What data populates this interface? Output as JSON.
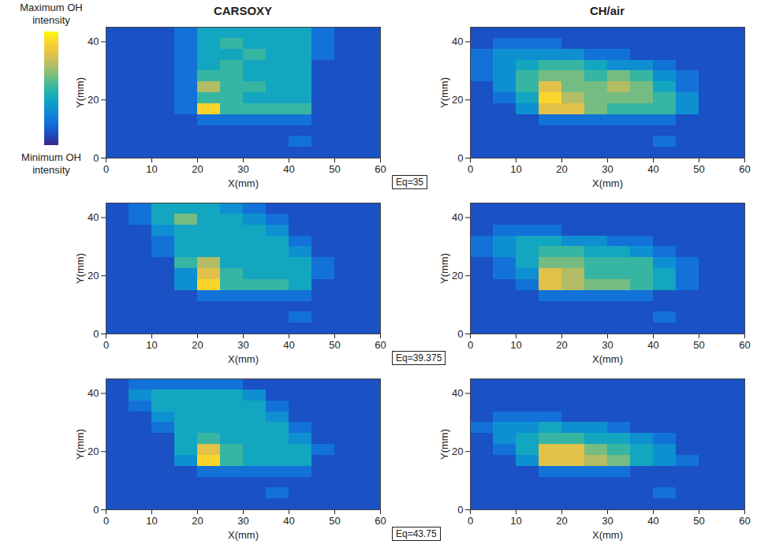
{
  "chart_data": {
    "type": "heatmap",
    "column_titles": [
      "CARSOXY",
      "CH/air"
    ],
    "row_labels": [
      "Eq=35",
      "Eq=39.375",
      "Eq=43.75"
    ],
    "x_label": "X(mm)",
    "y_label": "Y(mm)",
    "xlim": [
      0,
      60
    ],
    "ylim": [
      0,
      45
    ],
    "xticks": [
      0,
      10,
      20,
      30,
      40,
      50,
      60
    ],
    "yticks": [
      0,
      20,
      40
    ],
    "x_bins": [
      0,
      5,
      10,
      15,
      20,
      25,
      30,
      35,
      40,
      45,
      50,
      55,
      60
    ],
    "y_bins": [
      45,
      41.25,
      37.5,
      33.75,
      30,
      26.25,
      22.5,
      18.75,
      15,
      11.25,
      7.5,
      3.75,
      0
    ],
    "colorbar": {
      "max_label": "Maximum OH intensity",
      "min_label": "Minimum OH intensity",
      "range": [
        0,
        10
      ]
    },
    "panels": [
      [
        [
          [
            1,
            1,
            1,
            2,
            4,
            4,
            4,
            4,
            4,
            2,
            1,
            1
          ],
          [
            1,
            1,
            1,
            2,
            4,
            5,
            4,
            4,
            4,
            2,
            1,
            1
          ],
          [
            1,
            1,
            1,
            2,
            4,
            4,
            5,
            4,
            4,
            2,
            1,
            1
          ],
          [
            1,
            1,
            1,
            2,
            4,
            5,
            4,
            4,
            4,
            1,
            1,
            1
          ],
          [
            1,
            1,
            1,
            2,
            5,
            5,
            4,
            4,
            4,
            1,
            1,
            1
          ],
          [
            1,
            1,
            1,
            2,
            7,
            5,
            5,
            4,
            4,
            1,
            1,
            1
          ],
          [
            1,
            1,
            1,
            2,
            5,
            5,
            4,
            4,
            4,
            1,
            1,
            1
          ],
          [
            1,
            1,
            1,
            2,
            9,
            5,
            5,
            5,
            5,
            1,
            1,
            1
          ],
          [
            1,
            1,
            1,
            1,
            2,
            2,
            2,
            2,
            2,
            1,
            1,
            1
          ],
          [
            1,
            1,
            1,
            1,
            1,
            1,
            1,
            1,
            1,
            1,
            1,
            1
          ],
          [
            1,
            1,
            1,
            1,
            1,
            1,
            1,
            1,
            2,
            1,
            1,
            1
          ],
          [
            1,
            1,
            1,
            1,
            1,
            1,
            1,
            1,
            1,
            1,
            1,
            1
          ]
        ],
        [
          [
            1,
            1,
            1,
            1,
            1,
            1,
            1,
            1,
            1,
            1,
            1,
            1
          ],
          [
            1,
            2,
            2,
            2,
            1,
            1,
            1,
            1,
            1,
            1,
            1,
            1
          ],
          [
            2,
            3,
            3,
            3,
            3,
            2,
            2,
            1,
            1,
            1,
            1,
            1
          ],
          [
            2,
            3,
            4,
            5,
            5,
            4,
            3,
            3,
            2,
            1,
            1,
            1
          ],
          [
            2,
            3,
            5,
            6,
            6,
            5,
            6,
            5,
            3,
            2,
            1,
            1
          ],
          [
            1,
            3,
            5,
            8,
            6,
            6,
            7,
            6,
            4,
            2,
            1,
            1
          ],
          [
            1,
            2,
            4,
            9,
            7,
            6,
            6,
            6,
            5,
            3,
            1,
            1
          ],
          [
            1,
            1,
            3,
            8,
            8,
            6,
            5,
            5,
            5,
            3,
            1,
            1
          ],
          [
            1,
            1,
            1,
            2,
            2,
            2,
            2,
            2,
            2,
            1,
            1,
            1
          ],
          [
            1,
            1,
            1,
            1,
            1,
            1,
            1,
            1,
            1,
            1,
            1,
            1
          ],
          [
            1,
            1,
            1,
            1,
            1,
            1,
            1,
            1,
            2,
            1,
            1,
            1
          ],
          [
            1,
            1,
            1,
            1,
            1,
            1,
            1,
            1,
            1,
            1,
            1,
            1
          ]
        ]
      ],
      [
        [
          [
            1,
            2,
            4,
            4,
            4,
            3,
            2,
            1,
            1,
            1,
            1,
            1
          ],
          [
            1,
            2,
            4,
            6,
            4,
            4,
            3,
            2,
            1,
            1,
            1,
            1
          ],
          [
            1,
            1,
            3,
            4,
            4,
            4,
            4,
            3,
            1,
            1,
            1,
            1
          ],
          [
            1,
            1,
            2,
            4,
            4,
            4,
            4,
            4,
            2,
            1,
            1,
            1
          ],
          [
            1,
            1,
            2,
            4,
            4,
            4,
            4,
            4,
            3,
            1,
            1,
            1
          ],
          [
            1,
            1,
            1,
            5,
            7,
            4,
            4,
            4,
            4,
            2,
            1,
            1
          ],
          [
            1,
            1,
            1,
            3,
            8,
            5,
            4,
            4,
            4,
            2,
            1,
            1
          ],
          [
            1,
            1,
            1,
            3,
            9,
            5,
            5,
            5,
            4,
            1,
            1,
            1
          ],
          [
            1,
            1,
            1,
            1,
            2,
            2,
            2,
            2,
            2,
            1,
            1,
            1
          ],
          [
            1,
            1,
            1,
            1,
            1,
            1,
            1,
            1,
            1,
            1,
            1,
            1
          ],
          [
            1,
            1,
            1,
            1,
            1,
            1,
            1,
            1,
            2,
            1,
            1,
            1
          ],
          [
            1,
            1,
            1,
            1,
            1,
            1,
            1,
            1,
            1,
            1,
            1,
            1
          ]
        ],
        [
          [
            1,
            1,
            1,
            1,
            1,
            1,
            1,
            1,
            1,
            1,
            1,
            1
          ],
          [
            1,
            1,
            1,
            1,
            1,
            1,
            1,
            1,
            1,
            1,
            1,
            1
          ],
          [
            1,
            2,
            2,
            2,
            1,
            1,
            1,
            1,
            1,
            1,
            1,
            1
          ],
          [
            2,
            3,
            4,
            4,
            3,
            3,
            2,
            2,
            1,
            1,
            1,
            1
          ],
          [
            2,
            3,
            4,
            5,
            5,
            4,
            4,
            3,
            2,
            1,
            1,
            1
          ],
          [
            1,
            2,
            4,
            6,
            6,
            5,
            5,
            5,
            3,
            2,
            1,
            1
          ],
          [
            1,
            2,
            3,
            8,
            7,
            5,
            5,
            5,
            4,
            2,
            1,
            1
          ],
          [
            1,
            1,
            2,
            8,
            7,
            6,
            6,
            5,
            4,
            2,
            1,
            1
          ],
          [
            1,
            1,
            1,
            2,
            2,
            2,
            2,
            2,
            1,
            1,
            1,
            1
          ],
          [
            1,
            1,
            1,
            1,
            1,
            1,
            1,
            1,
            1,
            1,
            1,
            1
          ],
          [
            1,
            1,
            1,
            1,
            1,
            1,
            1,
            1,
            2,
            1,
            1,
            1
          ],
          [
            1,
            1,
            1,
            1,
            1,
            1,
            1,
            1,
            1,
            1,
            1,
            1
          ]
        ]
      ],
      [
        [
          [
            1,
            2,
            2,
            2,
            2,
            2,
            1,
            1,
            1,
            1,
            1,
            1
          ],
          [
            1,
            3,
            4,
            4,
            4,
            4,
            3,
            1,
            1,
            1,
            1,
            1
          ],
          [
            1,
            2,
            4,
            4,
            4,
            4,
            4,
            2,
            1,
            1,
            1,
            1
          ],
          [
            1,
            1,
            3,
            4,
            4,
            4,
            4,
            3,
            1,
            1,
            1,
            1
          ],
          [
            1,
            1,
            2,
            4,
            4,
            4,
            4,
            4,
            2,
            1,
            1,
            1
          ],
          [
            1,
            1,
            1,
            4,
            5,
            4,
            4,
            4,
            3,
            1,
            1,
            1
          ],
          [
            1,
            1,
            1,
            4,
            8,
            5,
            4,
            4,
            4,
            2,
            1,
            1
          ],
          [
            1,
            1,
            1,
            3,
            9,
            5,
            4,
            4,
            4,
            1,
            1,
            1
          ],
          [
            1,
            1,
            1,
            1,
            2,
            2,
            2,
            2,
            2,
            1,
            1,
            1
          ],
          [
            1,
            1,
            1,
            1,
            1,
            1,
            1,
            1,
            1,
            1,
            1,
            1
          ],
          [
            1,
            1,
            1,
            1,
            1,
            1,
            1,
            2,
            1,
            1,
            1,
            1
          ],
          [
            1,
            1,
            1,
            1,
            1,
            1,
            1,
            1,
            1,
            1,
            1,
            1
          ]
        ],
        [
          [
            1,
            1,
            1,
            1,
            1,
            1,
            1,
            1,
            1,
            1,
            1,
            1
          ],
          [
            1,
            1,
            1,
            1,
            1,
            1,
            1,
            1,
            1,
            1,
            1,
            1
          ],
          [
            1,
            1,
            1,
            1,
            1,
            1,
            1,
            1,
            1,
            1,
            1,
            1
          ],
          [
            1,
            2,
            2,
            2,
            1,
            1,
            1,
            1,
            1,
            1,
            1,
            1
          ],
          [
            2,
            3,
            3,
            4,
            3,
            3,
            2,
            1,
            1,
            1,
            1,
            1
          ],
          [
            1,
            3,
            4,
            5,
            5,
            4,
            4,
            3,
            2,
            1,
            1,
            1
          ],
          [
            1,
            2,
            4,
            8,
            8,
            6,
            5,
            4,
            3,
            1,
            1,
            1
          ],
          [
            1,
            1,
            3,
            8,
            8,
            7,
            6,
            4,
            3,
            2,
            1,
            1
          ],
          [
            1,
            1,
            1,
            2,
            2,
            2,
            2,
            1,
            1,
            1,
            1,
            1
          ],
          [
            1,
            1,
            1,
            1,
            1,
            1,
            1,
            1,
            1,
            1,
            1,
            1
          ],
          [
            1,
            1,
            1,
            1,
            1,
            1,
            1,
            1,
            2,
            1,
            1,
            1
          ],
          [
            1,
            1,
            1,
            1,
            1,
            1,
            1,
            1,
            1,
            1,
            1,
            1
          ]
        ]
      ]
    ]
  }
}
